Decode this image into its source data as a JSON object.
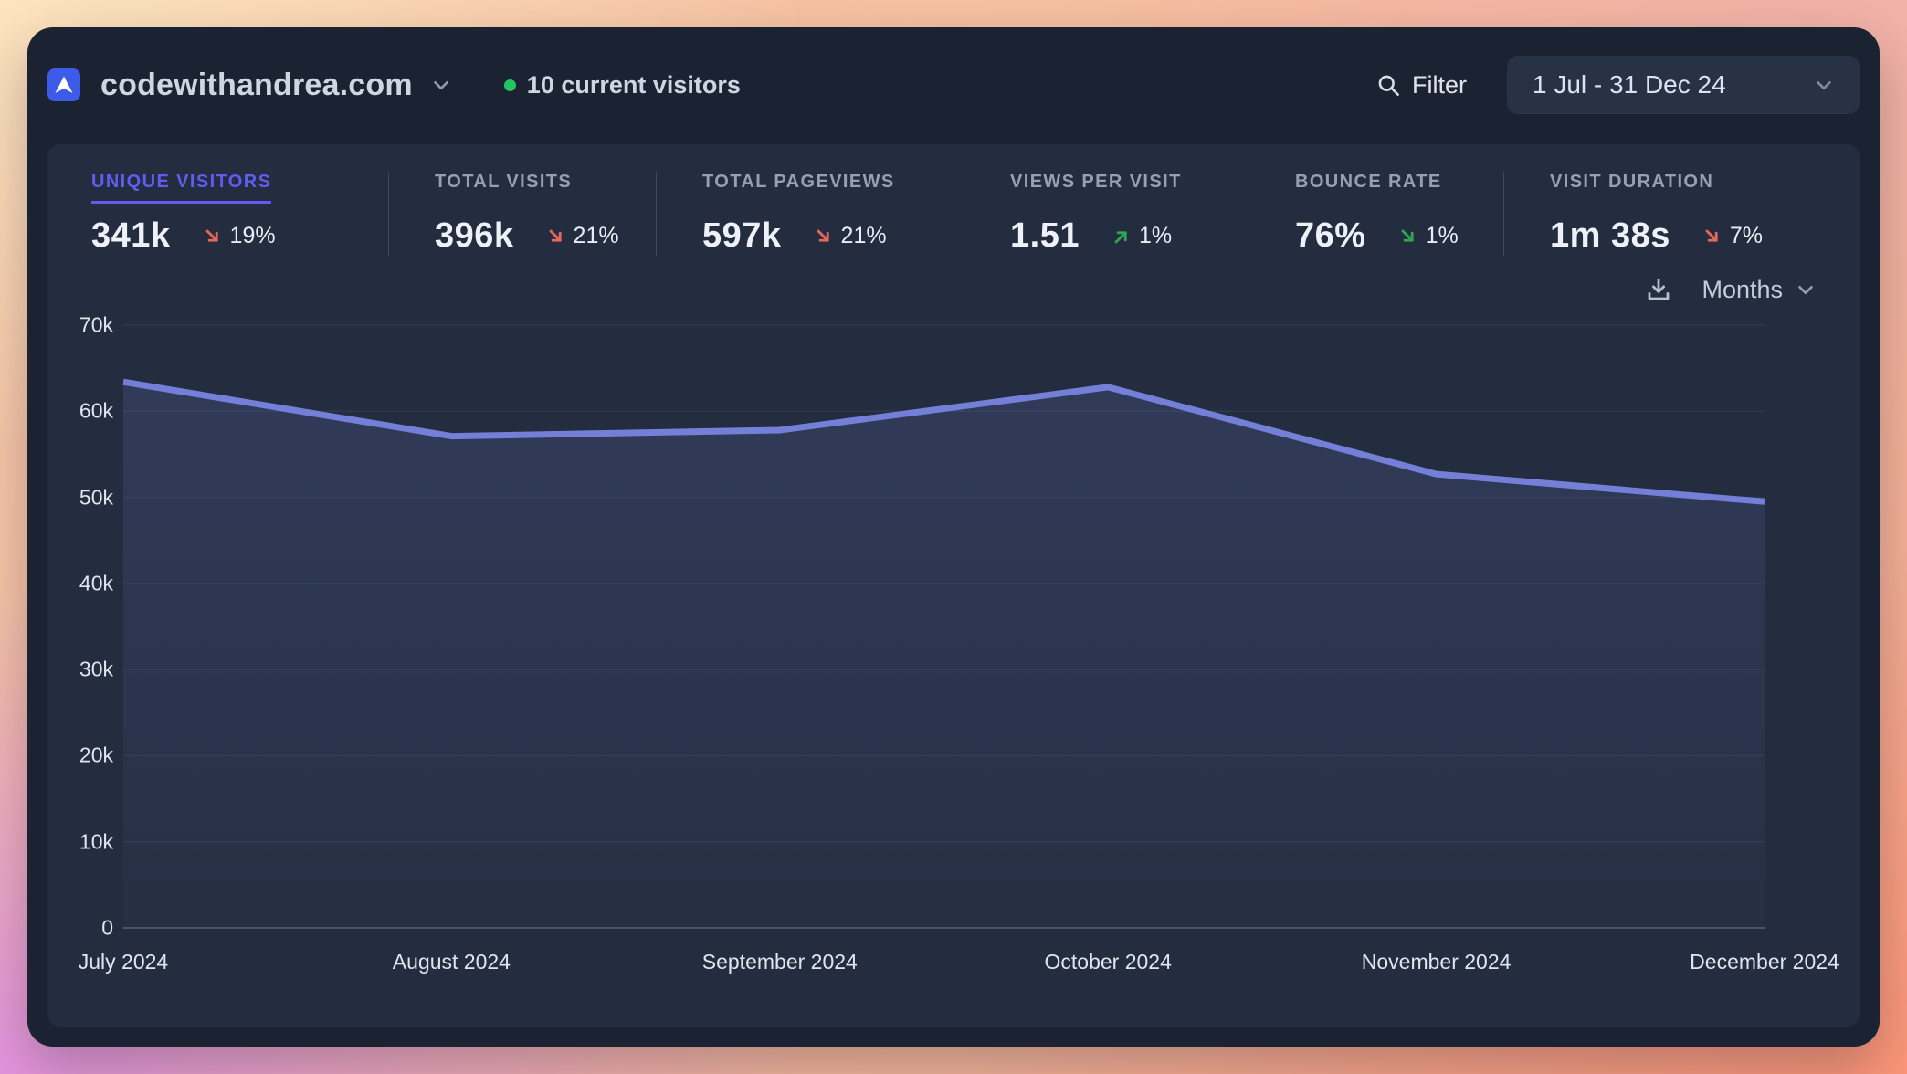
{
  "header": {
    "site_name": "codewithandrea.com",
    "current_visitors": "10 current visitors",
    "filter_label": "Filter",
    "date_range": "1 Jul - 31 Dec 24"
  },
  "stats": [
    {
      "label": "UNIQUE VISITORS",
      "value": "341k",
      "change": "19%",
      "arrow": "down",
      "change_type": "negative",
      "selected": true
    },
    {
      "label": "TOTAL VISITS",
      "value": "396k",
      "change": "21%",
      "arrow": "down",
      "change_type": "negative",
      "selected": false
    },
    {
      "label": "TOTAL PAGEVIEWS",
      "value": "597k",
      "change": "21%",
      "arrow": "down",
      "change_type": "negative",
      "selected": false
    },
    {
      "label": "VIEWS PER VISIT",
      "value": "1.51",
      "change": "1%",
      "arrow": "up",
      "change_type": "positive",
      "selected": false
    },
    {
      "label": "BOUNCE RATE",
      "value": "76%",
      "change": "1%",
      "arrow": "down",
      "change_type": "positive",
      "selected": false
    },
    {
      "label": "VISIT DURATION",
      "value": "1m 38s",
      "change": "7%",
      "arrow": "down",
      "change_type": "negative",
      "selected": false
    }
  ],
  "chart_controls": {
    "interval_label": "Months"
  },
  "chart_data": {
    "type": "area",
    "title": "",
    "metric": "UNIQUE VISITORS",
    "categories": [
      "July 2024",
      "August 2024",
      "September 2024",
      "October 2024",
      "November 2024",
      "December 2024"
    ],
    "values": [
      63400,
      57100,
      57800,
      62800,
      52700,
      49500
    ],
    "xlabel": "",
    "ylabel": "",
    "ylim": [
      0,
      70000
    ],
    "ytick_labels": [
      "70k",
      "60k",
      "50k",
      "40k",
      "30k",
      "20k",
      "10k",
      "0"
    ],
    "grid": true,
    "legend_position": "none",
    "line_color": "#7480d8"
  },
  "icons": {
    "logo": "arrow-up-cursor",
    "site_switcher": "chevron-down",
    "live_indicator": "green-dot",
    "filter": "magnifier",
    "date_picker": "chevron-down",
    "export": "download-tray",
    "interval": "chevron-down",
    "trend_negative": "arrow-down-right",
    "trend_positive": "arrow-up-right"
  },
  "colors": {
    "accent": "#5f5df0",
    "line": "#7480d8",
    "negative": "#e4675c",
    "positive": "#2fa452",
    "live": "#22c55e",
    "card": "#1b2332",
    "panel": "#232d3f"
  }
}
